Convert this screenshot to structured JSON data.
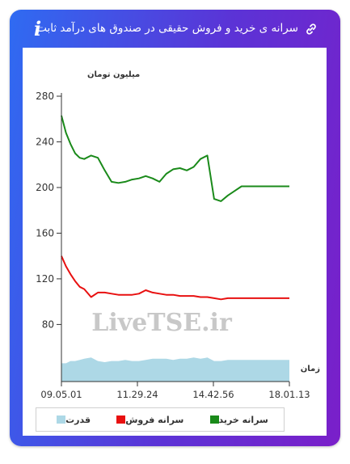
{
  "header": {
    "title": "سرانه ی خرید و فروش حقیقی در صندوق های درآمد ثابت",
    "info_icon": "i",
    "link_icon": "link-icon"
  },
  "watermark": "LiveTSE.ir",
  "chart_data": {
    "type": "line",
    "ylabel": "میلیون تومان",
    "xlabel": "زمان",
    "ylim": [
      30,
      280
    ],
    "yticks": [
      80,
      120,
      160,
      200,
      240,
      280
    ],
    "x_tick_labels": [
      "09.05.01",
      "11.29.24",
      "14.42.56",
      "18.01.13"
    ],
    "x": [
      0,
      2,
      4,
      6,
      8,
      10,
      13,
      16,
      19,
      22,
      25,
      28,
      31,
      34,
      37,
      40,
      43,
      46,
      49,
      52,
      55,
      58,
      61,
      64,
      67,
      70,
      73,
      76,
      79,
      82,
      85,
      88,
      91,
      94,
      97,
      100
    ],
    "series": [
      {
        "name": "سرانه خرید",
        "color": "#1a8a1a",
        "values": [
          263,
          248,
          238,
          230,
          226,
          225,
          228,
          226,
          215,
          205,
          204,
          205,
          207,
          208,
          210,
          208,
          205,
          212,
          216,
          217,
          215,
          218,
          225,
          228,
          190,
          188,
          193,
          197,
          201,
          201,
          201,
          201,
          201,
          201,
          201,
          201
        ]
      },
      {
        "name": "سرانه فروش",
        "color": "#e81010",
        "values": [
          140,
          131,
          124,
          118,
          113,
          111,
          104,
          108,
          108,
          107,
          106,
          106,
          106,
          107,
          110,
          108,
          107,
          106,
          106,
          105,
          105,
          105,
          104,
          104,
          103,
          102,
          103,
          103,
          103,
          103,
          103,
          103,
          103,
          103,
          103,
          103
        ]
      },
      {
        "name": "قدرت",
        "color": "#add8e6",
        "type": "area",
        "values": [
          46,
          46,
          48,
          48,
          49,
          50,
          51,
          48,
          47,
          48,
          48,
          49,
          48,
          48,
          49,
          50,
          50,
          50,
          49,
          50,
          50,
          51,
          50,
          51,
          48,
          48,
          49,
          49,
          49,
          49,
          49,
          49,
          49,
          49,
          49,
          49
        ]
      }
    ],
    "legend": [
      "سرانه خرید",
      "سرانه فروش",
      "قدرت"
    ],
    "legend_position": "bottom",
    "grid": false
  }
}
